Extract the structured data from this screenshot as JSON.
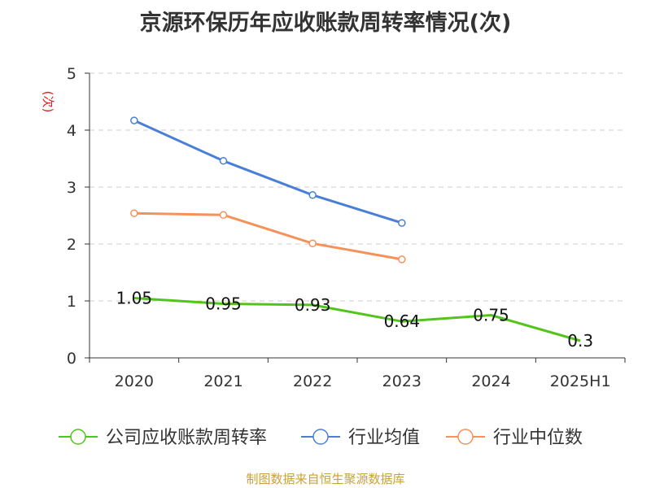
{
  "chart_data": {
    "type": "line",
    "title": "京源环保历年应收账款周转率情况(次)",
    "ylabel": "(次)",
    "ylim": [
      0,
      5
    ],
    "yticks": [
      0,
      1,
      2,
      3,
      4,
      5
    ],
    "categories": [
      "2020",
      "2021",
      "2022",
      "2023",
      "2024",
      "2025H1"
    ],
    "grid": true,
    "legend_position": "bottom",
    "series": [
      {
        "name": "公司应收账款周转率",
        "color": "#52c41a",
        "values": [
          1.05,
          0.95,
          0.93,
          0.64,
          0.75,
          0.3
        ],
        "labels": [
          "1.05",
          "0.95",
          "0.93",
          "0.64",
          "0.75",
          "0.3"
        ],
        "show_markers": false
      },
      {
        "name": "行业均值",
        "color": "#4a7fd8",
        "values": [
          4.17,
          3.46,
          2.86,
          2.37,
          null,
          null
        ],
        "show_markers": true
      },
      {
        "name": "行业中位数",
        "color": "#f5925a",
        "values": [
          2.54,
          2.51,
          2.01,
          1.73,
          null,
          null
        ],
        "show_markers": true
      }
    ]
  },
  "source": "制图数据来自恒生聚源数据库"
}
